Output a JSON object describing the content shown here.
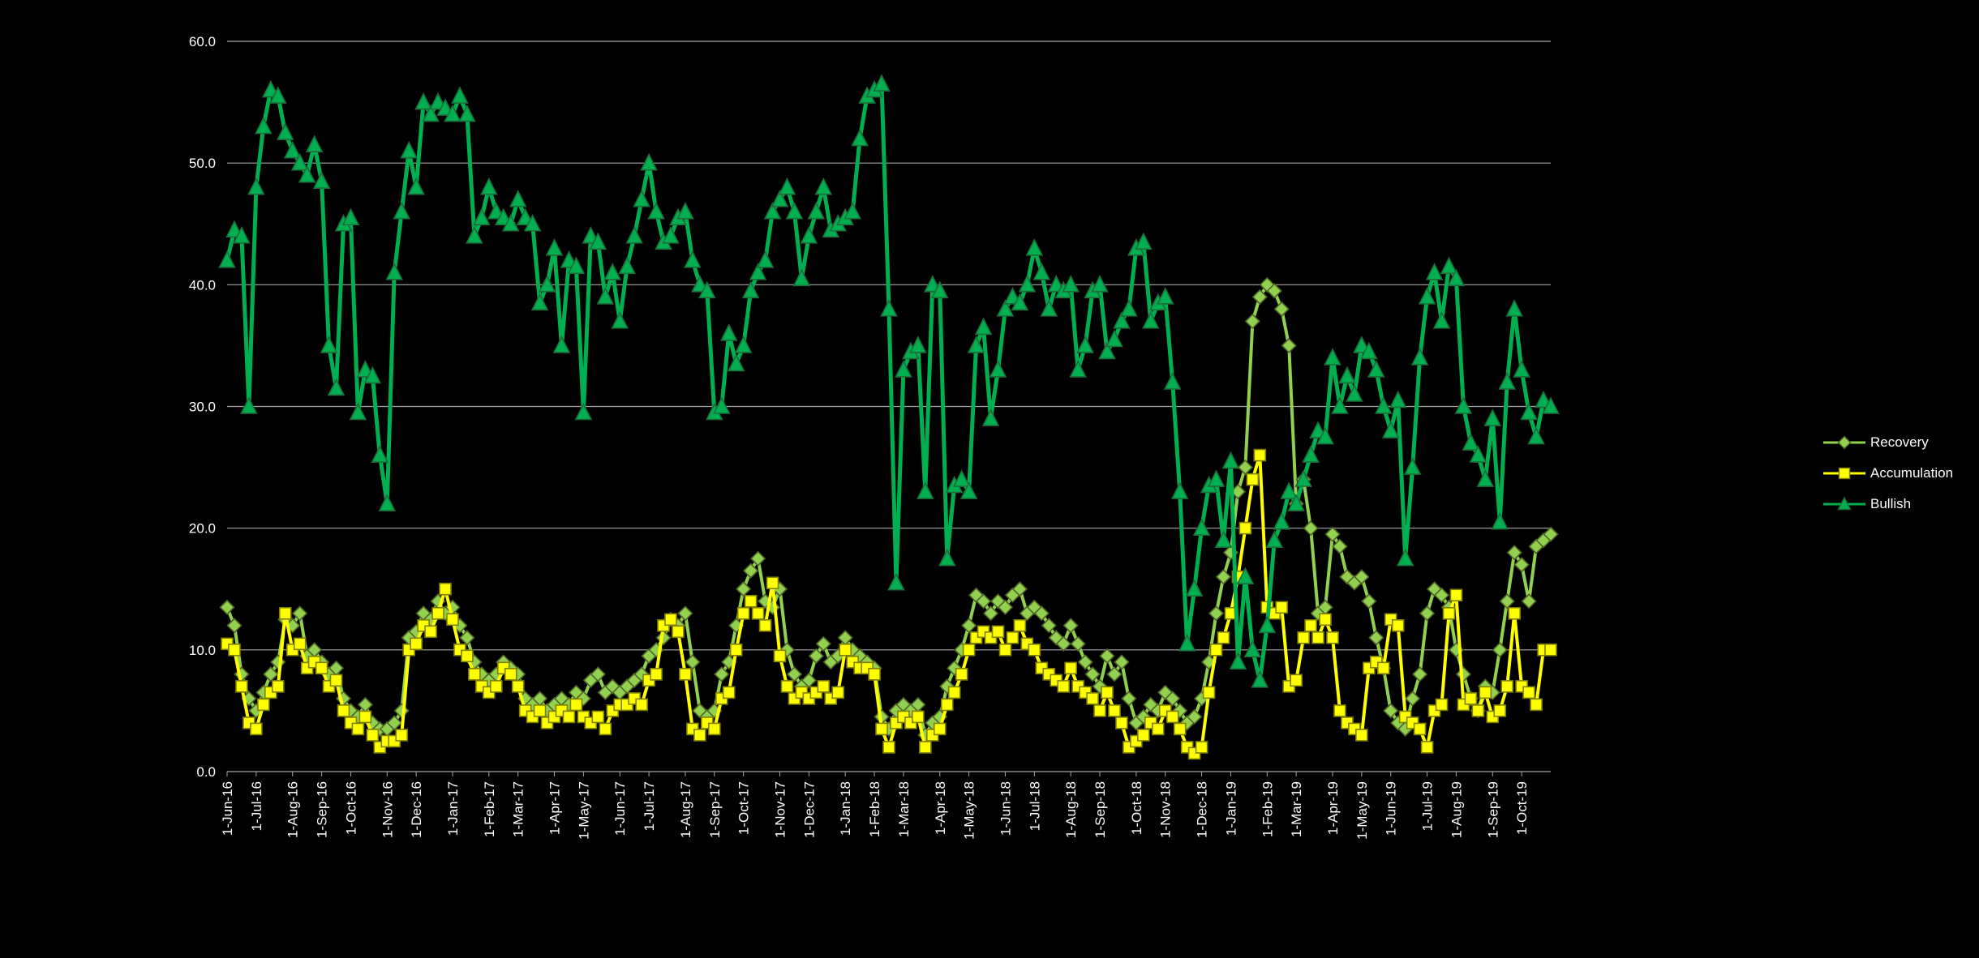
{
  "chart_data": {
    "type": "line",
    "title": "",
    "ylim": [
      0,
      60
    ],
    "y_ticks": [
      0,
      10,
      20,
      30,
      40,
      50,
      60
    ],
    "y_tick_labels": [
      "0.0",
      "10.0",
      "20.0",
      "30.0",
      "40.0",
      "50.0",
      "60.0"
    ],
    "x_tick_labels": [
      "1-Jun-16",
      "1-Jul-16",
      "1-Aug-16",
      "1-Sep-16",
      "1-Oct-16",
      "1-Nov-16",
      "1-Dec-16",
      "1-Jan-17",
      "1-Feb-17",
      "1-Mar-17",
      "1-Apr-17",
      "1-May-17",
      "1-Jun-17",
      "1-Jul-17",
      "1-Aug-17",
      "1-Sep-17",
      "1-Oct-17",
      "1-Nov-17",
      "1-Dec-17",
      "1-Jan-18",
      "1-Feb-18",
      "1-Mar-18",
      "1-Apr-18",
      "1-May-18",
      "1-Jun-18",
      "1-Jul-18",
      "1-Aug-18",
      "1-Sep-18",
      "1-Oct-18",
      "1-Nov-18",
      "1-Dec-18",
      "1-Jan-19",
      "1-Feb-19",
      "1-Mar-19",
      "1-Apr-19",
      "1-May-19",
      "1-Jun-19",
      "1-Jul-19",
      "1-Aug-19",
      "1-Sep-19",
      "1-Oct-19"
    ],
    "x_tick_indices": [
      0,
      4,
      9,
      13,
      17,
      22,
      26,
      31,
      36,
      40,
      45,
      49,
      54,
      58,
      63,
      67,
      71,
      76,
      80,
      85,
      89,
      93,
      98,
      102,
      107,
      111,
      116,
      120,
      125,
      129,
      134,
      138,
      143,
      147,
      152,
      156,
      160,
      165,
      169,
      174,
      178
    ],
    "grid": true,
    "legend_position": "right",
    "colors": {
      "background": "#000000",
      "gridline": "#A6A6A6",
      "axis_text": "#FFFFFF"
    },
    "series": [
      {
        "name": "Recovery",
        "color": "#92D050",
        "marker": "diamond",
        "marker_stroke": "#4F6228",
        "values": [
          13.5,
          12,
          8,
          6,
          5,
          6.5,
          8,
          9,
          12.5,
          12,
          13,
          9.5,
          10,
          9,
          8,
          8.5,
          6,
          5,
          4.5,
          5.5,
          4,
          3.5,
          3.5,
          4,
          5,
          11,
          11.5,
          13,
          12.5,
          14,
          13,
          13.5,
          12,
          11,
          9,
          8,
          7.5,
          8,
          9,
          8.5,
          8,
          6,
          5.5,
          6,
          5,
          5.5,
          6,
          5.5,
          6.5,
          6,
          7.5,
          8,
          6.5,
          7,
          6.5,
          7,
          7.5,
          8,
          9.5,
          10,
          11,
          12.5,
          12,
          13,
          9,
          5,
          4.5,
          5,
          8,
          9,
          12,
          15,
          16.5,
          17.5,
          14,
          13.5,
          15,
          10,
          8,
          7,
          7.5,
          9.5,
          10.5,
          9,
          9.5,
          11,
          10,
          9.5,
          9,
          8.5,
          4.5,
          3.5,
          5,
          5.5,
          5,
          5.5,
          3,
          4,
          4.5,
          7,
          8.5,
          10,
          12,
          14.5,
          14,
          13,
          14,
          13.5,
          14.5,
          15,
          13,
          13.5,
          13,
          12,
          11,
          10.5,
          12,
          10.5,
          9,
          8,
          7,
          9.5,
          8,
          9,
          6,
          4,
          4.5,
          5.5,
          5,
          6.5,
          6,
          5,
          4,
          4.5,
          6,
          9,
          13,
          16,
          18,
          23,
          25,
          37,
          39,
          40,
          39.5,
          38,
          35,
          22,
          24,
          20,
          13,
          13.5,
          19.5,
          18.5,
          16,
          15.5,
          16,
          14,
          11,
          8.5,
          5,
          4,
          3.5,
          6,
          8,
          13,
          15,
          14.5,
          13.5,
          10,
          8,
          6,
          5,
          7,
          6.5,
          10,
          14,
          18,
          17,
          14,
          18.5,
          19,
          19.5
        ]
      },
      {
        "name": "Accumulation",
        "color": "#FFFF00",
        "marker": "square",
        "marker_stroke": "#7F7F00",
        "values": [
          10.5,
          10,
          7,
          4,
          3.5,
          5.5,
          6.5,
          7,
          13,
          10,
          10.5,
          8.5,
          9,
          8.5,
          7,
          7.5,
          5,
          4,
          3.5,
          4.5,
          3,
          2,
          2.5,
          2.5,
          3,
          10,
          10.5,
          12,
          11.5,
          13,
          15,
          12.5,
          10,
          9.5,
          8,
          7,
          6.5,
          7,
          8.5,
          8,
          7,
          5,
          4.5,
          5,
          4,
          4.5,
          5,
          4.5,
          5.5,
          4.5,
          4,
          4.5,
          3.5,
          5,
          5.5,
          5.5,
          6,
          5.5,
          7.5,
          8,
          12,
          12.5,
          11.5,
          8,
          3.5,
          3,
          4,
          3.5,
          6,
          6.5,
          10,
          13,
          14,
          13,
          12,
          15.5,
          9.5,
          7,
          6,
          6.5,
          6,
          6.5,
          7,
          6,
          6.5,
          10,
          9,
          8.5,
          8.5,
          8,
          3.5,
          2,
          4,
          4.5,
          4,
          4.5,
          2,
          3,
          3.5,
          5.5,
          6.5,
          8,
          10,
          11,
          11.5,
          11,
          11.5,
          10,
          11,
          12,
          10.5,
          10,
          8.5,
          8,
          7.5,
          7,
          8.5,
          7,
          6.5,
          6,
          5,
          6.5,
          5,
          4,
          2,
          2.5,
          3,
          4,
          3.5,
          5,
          4.5,
          3.5,
          2,
          1.5,
          2,
          6.5,
          10,
          11,
          13,
          16,
          20,
          24,
          26,
          13.5,
          13,
          13.5,
          7,
          7.5,
          11,
          12,
          11,
          12.5,
          11,
          5,
          4,
          3.5,
          3,
          8.5,
          9,
          8.5,
          12.5,
          12,
          4.5,
          4,
          3.5,
          2,
          5,
          5.5,
          13,
          14.5,
          5.5,
          6,
          5,
          6.5,
          4.5,
          5,
          7,
          13,
          7,
          6.5,
          5.5,
          10,
          10
        ]
      },
      {
        "name": "Bullish",
        "color": "#00B050",
        "marker": "triangle",
        "marker_stroke": "#1F6B3A",
        "values": [
          42,
          44.5,
          44,
          30,
          48,
          53,
          56,
          55.5,
          52.5,
          51,
          50,
          49,
          51.5,
          48.5,
          35,
          31.5,
          45,
          45.5,
          29.5,
          33,
          32.5,
          26,
          22,
          41,
          46,
          51,
          48,
          55,
          54,
          55,
          54.5,
          54,
          55.5,
          54,
          44,
          45.5,
          48,
          46,
          45.5,
          45,
          47,
          45.5,
          45,
          38.5,
          40,
          43,
          35,
          42,
          41.5,
          29.5,
          44,
          43.5,
          39,
          41,
          37,
          41.5,
          44,
          47,
          50,
          46,
          43.5,
          44,
          45.5,
          46,
          42,
          40,
          39.5,
          29.5,
          30,
          36,
          33.5,
          35,
          39.5,
          41,
          42,
          46,
          47,
          48,
          46,
          40.5,
          44,
          46,
          48,
          44.5,
          45,
          45.5,
          46,
          52,
          55.5,
          56,
          56.5,
          38,
          15.5,
          33,
          34.5,
          35,
          23,
          40,
          39.5,
          17.5,
          23.5,
          24,
          23,
          35,
          36.5,
          29,
          33,
          38,
          39,
          38.5,
          40,
          43,
          41,
          38,
          40,
          39.5,
          40,
          33,
          35,
          39.5,
          40,
          34.5,
          35.5,
          37,
          38,
          43,
          43.5,
          37,
          38.5,
          39,
          32,
          23,
          10.5,
          15,
          20,
          23.5,
          24,
          19,
          25.5,
          9,
          16,
          10,
          7.5,
          12,
          19,
          20.5,
          23,
          22,
          24,
          26,
          28,
          27.5,
          34,
          30,
          32.5,
          31,
          35,
          34.5,
          33,
          30,
          28,
          30.5,
          17.5,
          25,
          34,
          39,
          41,
          37,
          41.5,
          40.5,
          30,
          27,
          26,
          24,
          29,
          20.5,
          32,
          38,
          33,
          29.5,
          27.5,
          30.5,
          30
        ]
      }
    ]
  }
}
